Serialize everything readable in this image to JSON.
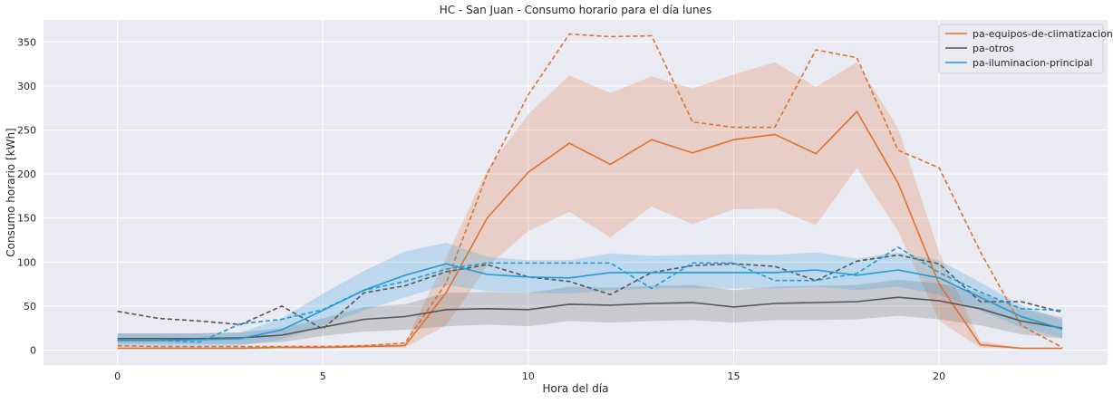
{
  "chart_data": {
    "type": "line",
    "title": "HC - San Juan - Consumo horario para el día lunes",
    "xlabel": "Hora del día",
    "ylabel": "Consumo horario [kWh]",
    "xlim": [
      -1.8,
      24.1
    ],
    "ylim": [
      -17,
      375
    ],
    "x_ticks": [
      0,
      5,
      10,
      15,
      20
    ],
    "y_ticks": [
      0,
      50,
      100,
      150,
      200,
      250,
      300,
      350
    ],
    "grid": true,
    "legend_position": "top-right",
    "x": [
      0,
      1,
      2,
      3,
      4,
      5,
      6,
      7,
      8,
      9,
      10,
      11,
      12,
      13,
      14,
      15,
      16,
      17,
      18,
      19,
      20,
      21,
      22,
      23
    ],
    "series": [
      {
        "name": "pa-equipos-de-climatizacion",
        "color": "#dd7130",
        "mean": [
          2,
          2,
          2,
          2,
          3,
          3,
          4,
          5,
          65,
          150,
          202,
          235,
          211,
          239,
          224,
          239,
          245,
          223,
          271,
          190,
          75,
          6,
          2,
          2
        ],
        "band_low": [
          1,
          1,
          1,
          1,
          2,
          2,
          3,
          3,
          28,
          95,
          135,
          157,
          128,
          163,
          143,
          160,
          161,
          142,
          207,
          135,
          33,
          3,
          1,
          1
        ],
        "band_high": [
          4,
          4,
          4,
          4,
          5,
          5,
          6,
          8,
          105,
          205,
          268,
          312,
          292,
          311,
          297,
          313,
          327,
          299,
          327,
          252,
          111,
          10,
          3,
          3
        ],
        "dashed": [
          5,
          4,
          4,
          4,
          4,
          4,
          5,
          8,
          76,
          200,
          290,
          359,
          356,
          357,
          259,
          253,
          253,
          341,
          332,
          227,
          207,
          112,
          28,
          3
        ]
      },
      {
        "name": "pa-otros",
        "color": "#555555",
        "mean": [
          13,
          13,
          13,
          14,
          17,
          26,
          35,
          38,
          46,
          47,
          46,
          52,
          51,
          53,
          54,
          49,
          53,
          54,
          55,
          60,
          56,
          47,
          33,
          25
        ],
        "band_low": [
          7,
          7,
          7,
          7,
          9,
          16,
          21,
          23,
          27,
          29,
          27,
          33,
          31,
          33,
          34,
          31,
          34,
          34,
          35,
          39,
          35,
          28,
          18,
          13
        ],
        "band_high": [
          19,
          19,
          19,
          20,
          25,
          36,
          49,
          52,
          65,
          66,
          65,
          72,
          71,
          73,
          74,
          68,
          72,
          73,
          74,
          80,
          76,
          65,
          47,
          37
        ],
        "dashed": [
          44,
          36,
          33,
          29,
          50,
          24,
          65,
          73,
          89,
          97,
          83,
          78,
          63,
          88,
          96,
          98,
          95,
          79,
          101,
          108,
          98,
          55,
          55,
          43
        ]
      },
      {
        "name": "pa-iluminacion-principal",
        "color": "#1f9ad6",
        "mean": [
          11,
          11,
          12,
          13,
          23,
          45,
          68,
          85,
          98,
          86,
          83,
          82,
          88,
          88,
          88,
          88,
          88,
          91,
          85,
          91,
          82,
          60,
          38,
          24
        ],
        "band_low": [
          4,
          4,
          4,
          5,
          12,
          28,
          45,
          60,
          74,
          67,
          65,
          64,
          68,
          70,
          70,
          70,
          70,
          72,
          68,
          72,
          63,
          45,
          26,
          14
        ],
        "band_high": [
          19,
          19,
          19,
          20,
          36,
          64,
          90,
          112,
          122,
          106,
          102,
          102,
          110,
          107,
          108,
          109,
          108,
          111,
          104,
          111,
          102,
          77,
          51,
          34
        ],
        "dashed": [
          11,
          11,
          9,
          30,
          35,
          46,
          68,
          78,
          92,
          99,
          99,
          99,
          99,
          70,
          99,
          99,
          79,
          79,
          87,
          117,
          88,
          66,
          47,
          45
        ]
      }
    ]
  }
}
